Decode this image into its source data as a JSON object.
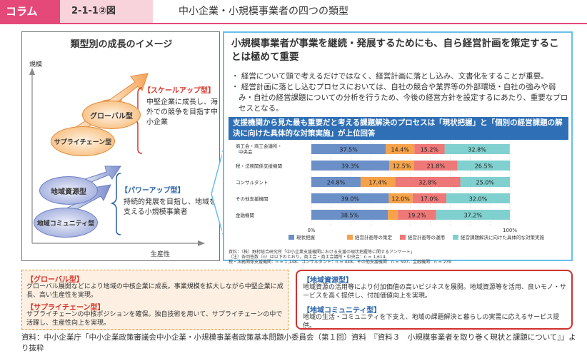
{
  "header": {
    "tag": "コラム",
    "figure": "2-1-1②図",
    "title": "中小企業・小規模事業者の四つの類型"
  },
  "left": {
    "title": "類型別の成長のイメージ",
    "y_axis": "規模",
    "x_axis": "生産性",
    "global": "グローバル型",
    "supply": "サプライチェーン型",
    "regional_resource": "地域資源型",
    "regional_community": "地域コミュニティ型",
    "scaleup_head": "【スケールアップ型】",
    "scaleup_text": "中堅企業に成長し、海外での競争を目指す中小企業",
    "powerup_head": "【パワーアップ型】",
    "powerup_text": "持続的発展を目指し、地域を支える小規模事業者"
  },
  "right": {
    "title": "小規模事業者が事業を継続・発展するためにも、自ら経営計画を策定することは極めて重要",
    "bullet1": "・ 経営について頭で考えるだけではなく、経営計画に落とし込み、文書化をすることが重要。",
    "bullet2": "・ 経営計画に落とし込むプロセスにおいては、自社の競合や業界等の外部環境・自社の強みや弱み・自社の経営課題についての分析を行うため、今後の経営方針を設定するにあたり、重要なプロセスとなる。",
    "bar": "支援機関から見た最も重要だと考える課題解決のプロセスは「現状把握」と「個別の経営課題の解決に向けた具体的な対策実施」が上位回答",
    "note1": "資料：（株）野村総合研究所「中小企業支援機関における支援の現状把握等に関するアンケート」",
    "note2": "（注）各回答数（n）は以下のとおり。商工会・商工会議所・中央会：n = 1,614、",
    "note3": "税・法務関係支援機関：n = 1,148、コンサルタント：n = 448、その他支援機関：n = 597、金融機関：n = 239"
  },
  "chart_data": {
    "type": "bar",
    "orientation": "horizontal",
    "stacked": true,
    "categories": [
      "商工会・商工会議所・中央会",
      "税・法務関係支援機関",
      "コンサルタント",
      "その他支援機関",
      "金融機関"
    ],
    "series": [
      {
        "name": "現状把握",
        "values": [
          37.5,
          39.3,
          24.8,
          39.0,
          38.5
        ],
        "color": "#6b8fc7"
      },
      {
        "name": "経営計画等の策定",
        "values": [
          14.4,
          12.5,
          17.4,
          12.0,
          5.1
        ],
        "color": "#f5a24a"
      },
      {
        "name": "経営計画等の運用",
        "values": [
          15.2,
          21.8,
          32.8,
          17.0,
          19.2
        ],
        "color": "#ee7777"
      },
      {
        "name": "経営課題解決に向けた具体的な対策実施",
        "values": [
          32.8,
          26.5,
          25.0,
          32.0,
          37.2
        ],
        "color": "#7fd0cf"
      }
    ],
    "data_labels": [
      [
        "37.5%",
        "14.4%",
        "15.2%",
        "32.8%"
      ],
      [
        "39.3%",
        "12.5%",
        "21.8%",
        "26.5%"
      ],
      [
        "24.8%",
        "17.4%",
        "32.8%",
        "25.0%"
      ],
      [
        "39.0%",
        "12.0%",
        "17.0%",
        "32.0%"
      ],
      [
        "38.5%",
        "",
        "19.2%",
        "37.2%"
      ]
    ],
    "x_ticks": [
      "0%",
      "100%"
    ],
    "xlim": [
      0,
      100
    ]
  },
  "bottom": {
    "global_head": "【グローバル型】",
    "global_text": "グローバル展開などにより地域の中核企業に成長。事業規模を拡大しながら中堅企業に成長、高い生産性を実現。",
    "supply_head": "【サプライチェーン型】",
    "supply_text": "サプライチェーンの中核ポジションを確保。独自技術を用いて、サプライチェーンの中で活躍し、生産性向上を実現。",
    "resource_head": "【地域資源型】",
    "resource_text": "地域資源の活用等により付加価値の高いビジネスを展開。地域資源等を活用、良いモノ・サービスを高く提供し、付加価値向上を実現。",
    "community_head": "【地域コミュニティ型】",
    "community_text": "地域の生活・コミュニティを下支え、地域の課題解決と暮らしの実需に応えるサービス提供。"
  },
  "source": "資料：中小企業庁「中小企業政策審議会中小企業・小規模事業者政策基本問題小委員会（第１回）資料　『資料３　小規模事業者を取り巻く現状と課題について』」より抜粋"
}
